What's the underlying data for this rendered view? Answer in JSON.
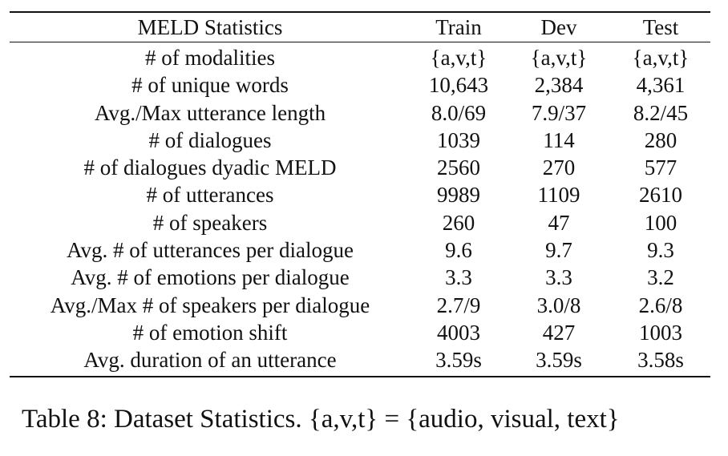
{
  "table": {
    "headers": [
      "MELD Statistics",
      "Train",
      "Dev",
      "Test"
    ],
    "rows": [
      [
        "# of modalities",
        "{a,v,t}",
        "{a,v,t}",
        "{a,v,t}"
      ],
      [
        "# of unique words",
        "10,643",
        "2,384",
        "4,361"
      ],
      [
        "Avg./Max utterance length",
        "8.0/69",
        "7.9/37",
        "8.2/45"
      ],
      [
        "# of dialogues",
        "1039",
        "114",
        "280"
      ],
      [
        "# of dialogues dyadic MELD",
        "2560",
        "270",
        "577"
      ],
      [
        "# of utterances",
        "9989",
        "1109",
        "2610"
      ],
      [
        "# of speakers",
        "260",
        "47",
        "100"
      ],
      [
        "Avg. # of utterances per dialogue",
        "9.6",
        "9.7",
        "9.3"
      ],
      [
        "Avg. # of emotions per dialogue",
        "3.3",
        "3.3",
        "3.2"
      ],
      [
        "Avg./Max # of speakers per dialogue",
        "2.7/9",
        "3.0/8",
        "2.6/8"
      ],
      [
        "# of emotion shift",
        "4003",
        "427",
        "1003"
      ],
      [
        "Avg. duration of an utterance",
        "3.59s",
        "3.59s",
        "3.58s"
      ]
    ]
  },
  "caption": "Table 8: Dataset Statistics. {a,v,t} = {audio, visual, text}"
}
